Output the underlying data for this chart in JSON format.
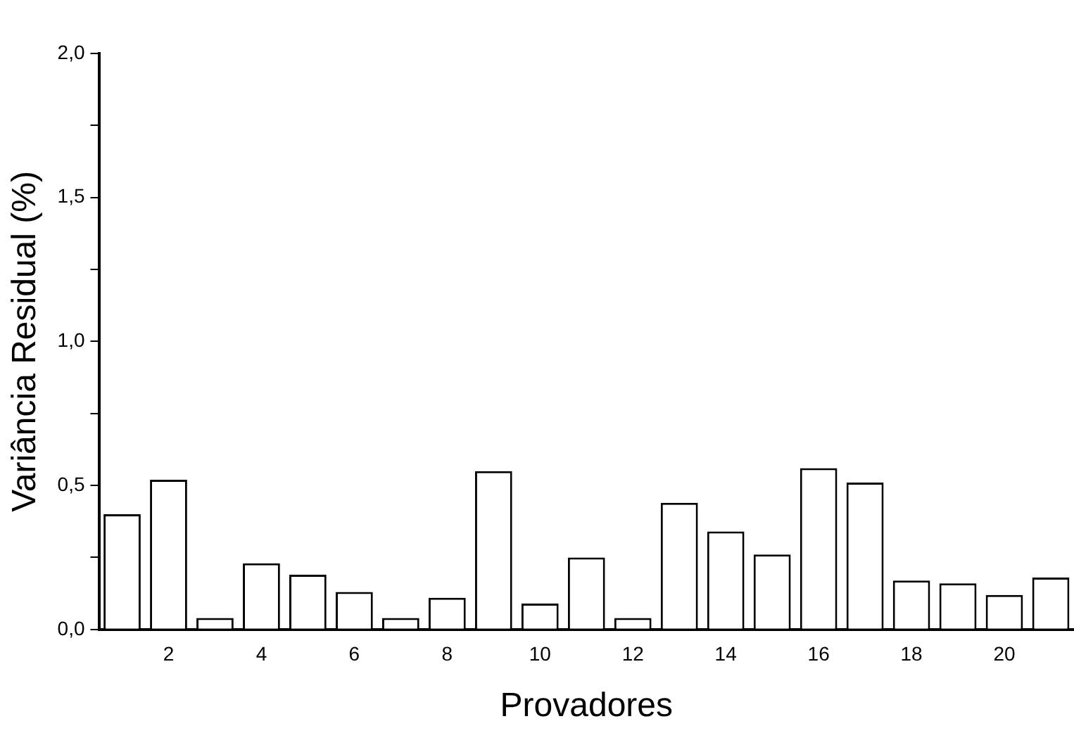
{
  "chart_data": {
    "type": "bar",
    "xlabel": "Provadores",
    "ylabel": "Variância Residual (%)",
    "categories": [
      null,
      "2",
      null,
      "4",
      null,
      "6",
      null,
      "8",
      null,
      "10",
      null,
      "12",
      null,
      "14",
      null,
      "16",
      null,
      "18",
      null,
      "20",
      null
    ],
    "values": [
      0.4,
      0.52,
      0.04,
      0.23,
      0.19,
      0.13,
      0.04,
      0.11,
      0.55,
      0.09,
      0.25,
      0.04,
      0.44,
      0.34,
      0.26,
      0.56,
      0.51,
      0.17,
      0.16,
      0.12,
      0.18
    ],
    "color": "#ffffff",
    "ylim": [
      0,
      2
    ],
    "yticks": [
      {
        "value": 0,
        "label": "0,0"
      },
      {
        "value": 0.25,
        "label": null
      },
      {
        "value": 0.5,
        "label": "0,5"
      },
      {
        "value": 0.75,
        "label": null
      },
      {
        "value": 1,
        "label": "1,0"
      },
      {
        "value": 1.25,
        "label": null
      },
      {
        "value": 1.5,
        "label": "1,5"
      },
      {
        "value": 1.75,
        "label": null
      },
      {
        "value": 2,
        "label": "2,0"
      }
    ],
    "grid": false,
    "legend": false
  }
}
